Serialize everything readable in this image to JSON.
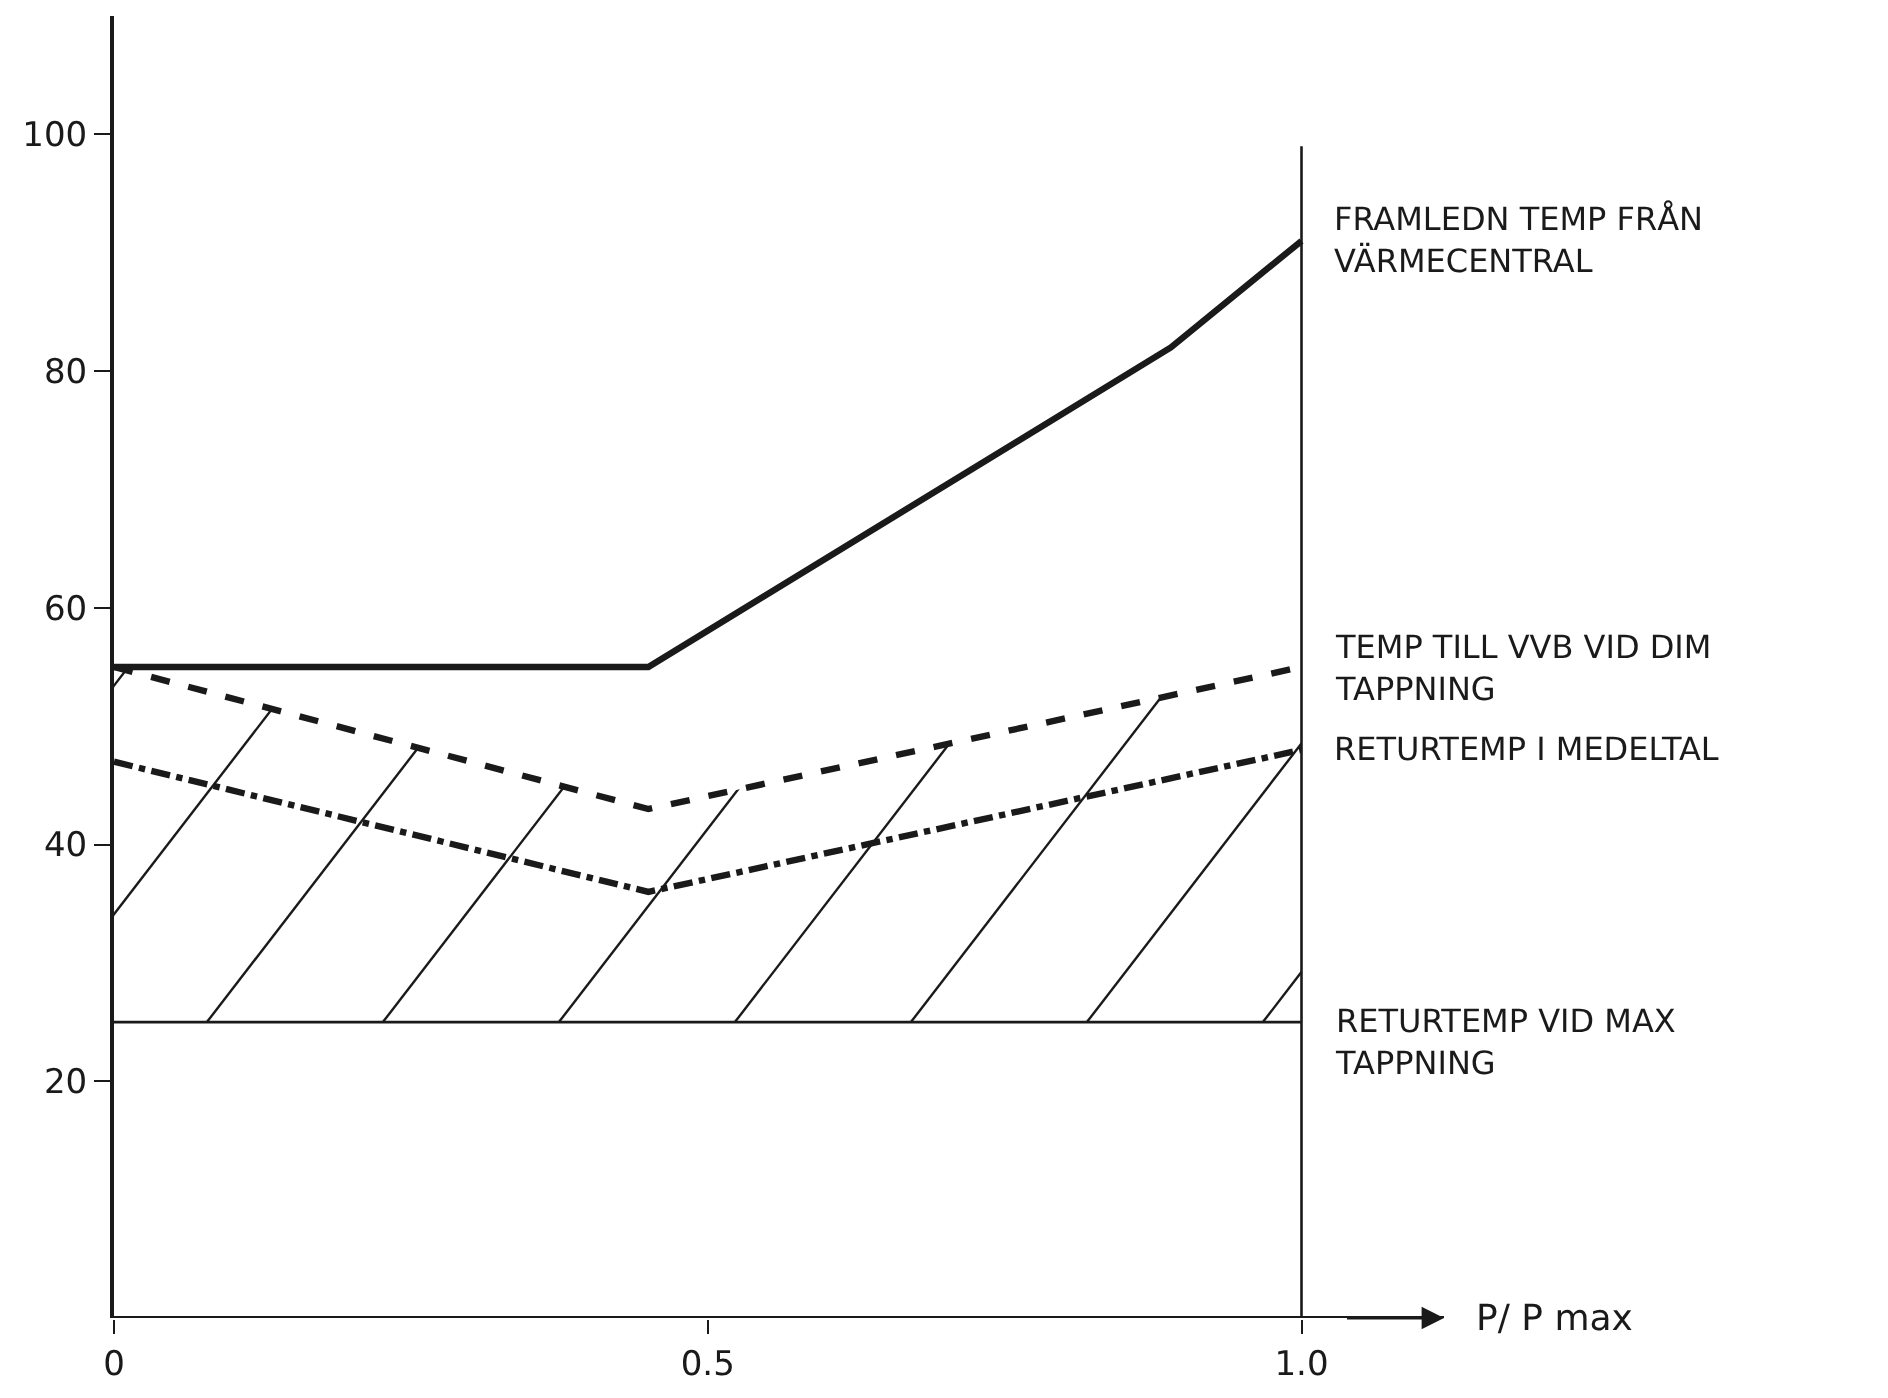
{
  "chart_data": {
    "type": "line",
    "xlabel": "P/ P max",
    "xlim": [
      0,
      1.12
    ],
    "ylim": [
      0,
      110
    ],
    "xticks": [
      0,
      0.5,
      {
        "value": 1,
        "label": "1.0"
      }
    ],
    "yticks": [
      20,
      40,
      60,
      80,
      100
    ],
    "grid": false,
    "legend": false,
    "marker": "none",
    "series": [
      {
        "name": "FRAMLEDN TEMP FRÅN VÄRMECENTRAL",
        "color": "#1a1a1a",
        "x": [
          0,
          0.45,
          0.89,
          1.0
        ],
        "values": [
          55,
          55,
          82,
          91
        ],
        "line_style": "solid"
      },
      {
        "name": "TEMP TILL VVB VID DIM TAPPNING",
        "color": "#1a1a1a",
        "x": [
          0,
          0.45,
          1.0
        ],
        "values": [
          55,
          43,
          55
        ],
        "line_style": "dashed"
      },
      {
        "name": "RETURTEMP I MEDELTAL",
        "color": "#1a1a1a",
        "x": [
          0,
          0.45,
          1.0
        ],
        "values": [
          47,
          36,
          48
        ],
        "line_style": "dashdot"
      }
    ],
    "ref_lines": [
      {
        "axis": "y",
        "value": 25,
        "label": "RETURTEMP VID MAX TAPPNING",
        "color": "#1a1a1a"
      },
      {
        "axis": "x",
        "value": 1.0,
        "color": "#1a1a1a"
      }
    ]
  }
}
